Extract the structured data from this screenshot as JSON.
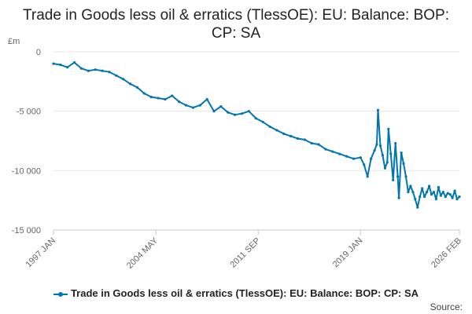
{
  "chart_data": {
    "type": "line",
    "title": "Trade in Goods less oil & erratics (TlessOE): EU: Balance: BOP: CP: SA",
    "unit_label": "£m",
    "x_start": "1997 JAN",
    "x_end": "2026 FEB",
    "x_tick_labels": [
      "1997 JAN",
      "2004 MAY",
      "2011 SEP",
      "2019 JAN",
      "2026 FEB"
    ],
    "y_ticks": [
      0,
      -5000,
      -10000,
      -15000
    ],
    "y_tick_labels": [
      "0",
      "-5 000",
      "-10 000",
      "-15 000"
    ],
    "ylim": [
      -15000,
      0
    ],
    "grid": true,
    "legend_position": "bottom",
    "series": [
      {
        "name": "Trade in Goods less oil & erratics (TlessOE): EU: Balance: BOP: CP: SA",
        "color": "#0075b0",
        "x": [
          "1997-01",
          "1997-07",
          "1998-01",
          "1998-07",
          "1999-01",
          "1999-07",
          "2000-01",
          "2000-07",
          "2001-01",
          "2001-07",
          "2002-01",
          "2002-07",
          "2003-01",
          "2003-07",
          "2004-01",
          "2004-07",
          "2005-01",
          "2005-07",
          "2006-01",
          "2006-07",
          "2007-01",
          "2007-07",
          "2008-01",
          "2008-07",
          "2009-01",
          "2009-07",
          "2010-01",
          "2010-07",
          "2011-01",
          "2011-07",
          "2012-01",
          "2012-07",
          "2013-01",
          "2013-07",
          "2014-01",
          "2014-07",
          "2015-01",
          "2015-07",
          "2016-01",
          "2016-07",
          "2017-01",
          "2017-07",
          "2018-01",
          "2018-07",
          "2019-01",
          "2019-04",
          "2019-07",
          "2019-10",
          "2020-01",
          "2020-03",
          "2020-04",
          "2020-06",
          "2020-08",
          "2020-10",
          "2020-12",
          "2021-01",
          "2021-03",
          "2021-05",
          "2021-07",
          "2021-09",
          "2021-10",
          "2021-12",
          "2022-02",
          "2022-04",
          "2022-06",
          "2022-08",
          "2022-10",
          "2022-12",
          "2023-02",
          "2023-04",
          "2023-06",
          "2023-08",
          "2023-10",
          "2023-12",
          "2024-02",
          "2024-04",
          "2024-06",
          "2024-08",
          "2024-10",
          "2024-12",
          "2025-02",
          "2025-04",
          "2025-06",
          "2025-08",
          "2025-10",
          "2025-12",
          "2026-02"
        ],
        "values": [
          -1000,
          -1100,
          -1300,
          -900,
          -1400,
          -1600,
          -1500,
          -1600,
          -1700,
          -2000,
          -2300,
          -2700,
          -3000,
          -3500,
          -3800,
          -3900,
          -4000,
          -3700,
          -4200,
          -4500,
          -4700,
          -4500,
          -4000,
          -5000,
          -4600,
          -5100,
          -5300,
          -5200,
          -5000,
          -5600,
          -5900,
          -6300,
          -6600,
          -6900,
          -7100,
          -7300,
          -7400,
          -7700,
          -7800,
          -8200,
          -8400,
          -8600,
          -8800,
          -9000,
          -8900,
          -9500,
          -10500,
          -9000,
          -8300,
          -7800,
          -4900,
          -7900,
          -8700,
          -9800,
          -9300,
          -6500,
          -8600,
          -10800,
          -7700,
          -10500,
          -12300,
          -8500,
          -9400,
          -10500,
          -11800,
          -11300,
          -11800,
          -12400,
          -13100,
          -12200,
          -11500,
          -12200,
          -11800,
          -11300,
          -12000,
          -11800,
          -12400,
          -11400,
          -12100,
          -11800,
          -12200,
          -11900,
          -12000,
          -12300,
          -11700,
          -12400,
          -12200
        ]
      }
    ]
  },
  "legend_label": "Trade in Goods less oil & erratics (TlessOE): EU: Balance: BOP: CP: SA",
  "source_label": "Source:"
}
